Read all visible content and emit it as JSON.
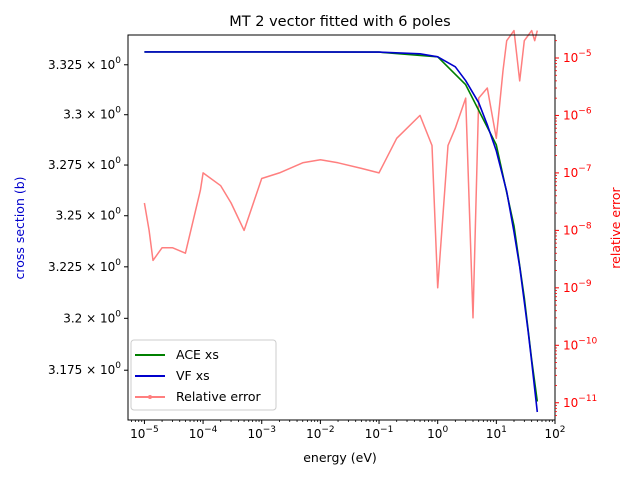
{
  "chart_data": {
    "type": "line",
    "title": "MT 2 vector fitted with 6 poles",
    "xlabel": "energy (eV)",
    "ylabel_left": "cross section (b)",
    "ylabel_right": "relative error",
    "x_scale": "log",
    "x_range_log10": [
      -5.28,
      2.0
    ],
    "x_ticks": [
      {
        "exp": -5,
        "label": "10",
        "sup": "−5"
      },
      {
        "exp": -4,
        "label": "10",
        "sup": "−4"
      },
      {
        "exp": -3,
        "label": "10",
        "sup": "−3"
      },
      {
        "exp": -2,
        "label": "10",
        "sup": "−2"
      },
      {
        "exp": -1,
        "label": "10",
        "sup": "−1"
      },
      {
        "exp": 0,
        "label": "10",
        "sup": "0"
      },
      {
        "exp": 1,
        "label": "10",
        "sup": "1"
      },
      {
        "exp": 2,
        "label": "10",
        "sup": "2"
      }
    ],
    "left_axis": {
      "scale": "log",
      "range": [
        3.1512,
        3.34
      ],
      "ticks": [
        {
          "value": 3.175,
          "label": "3.175 × 10",
          "sup": "0"
        },
        {
          "value": 3.2,
          "label": "3.2 × 10",
          "sup": "0"
        },
        {
          "value": 3.225,
          "label": "3.225 × 10",
          "sup": "0"
        },
        {
          "value": 3.25,
          "label": "3.25 × 10",
          "sup": "0"
        },
        {
          "value": 3.275,
          "label": "3.275 × 10",
          "sup": "0"
        },
        {
          "value": 3.3,
          "label": "3.3 × 10",
          "sup": "0"
        },
        {
          "value": 3.325,
          "label": "3.325 × 10",
          "sup": "0"
        }
      ]
    },
    "right_axis": {
      "scale": "log",
      "range_log10": [
        -11.3,
        -4.6
      ],
      "color": "#ff0000",
      "ticks": [
        {
          "exp": -11,
          "label": "10",
          "sup": "−11"
        },
        {
          "exp": -10,
          "label": "10",
          "sup": "−10"
        },
        {
          "exp": -9,
          "label": "10",
          "sup": "−9"
        },
        {
          "exp": -8,
          "label": "10",
          "sup": "−8"
        },
        {
          "exp": -7,
          "label": "10",
          "sup": "−7"
        },
        {
          "exp": -6,
          "label": "10",
          "sup": "−6"
        },
        {
          "exp": -5,
          "label": "10",
          "sup": "−5"
        }
      ]
    },
    "series": [
      {
        "name": "ACE xs",
        "color": "#008000",
        "axis": "left",
        "x": [
          1e-05,
          0.001,
          0.1,
          1.0,
          3.0,
          10.0,
          20.0,
          30.0,
          40.0,
          50.0
        ],
        "y": [
          3.3315,
          3.3315,
          3.3314,
          3.329,
          3.315,
          3.285,
          3.245,
          3.21,
          3.18,
          3.16
        ]
      },
      {
        "name": "VF xs",
        "color": "#0000cc",
        "axis": "left",
        "x": [
          1e-05,
          0.001,
          0.1,
          0.5,
          1.0,
          2.0,
          3.0,
          5.0,
          7.0,
          10.0,
          15.0,
          20.0,
          25.0,
          30.0,
          35.0,
          40.0,
          45.0,
          50.0
        ],
        "y": [
          3.3315,
          3.3315,
          3.3314,
          3.3305,
          3.329,
          3.324,
          3.317,
          3.306,
          3.295,
          3.282,
          3.262,
          3.242,
          3.225,
          3.208,
          3.193,
          3.179,
          3.166,
          3.155
        ]
      },
      {
        "name": "Relative error",
        "color": "#ff7f7f",
        "axis": "right",
        "x": [
          1e-05,
          1.2e-05,
          1.4e-05,
          2e-05,
          3e-05,
          5e-05,
          9e-05,
          0.0001,
          0.0002,
          0.0003,
          0.0005,
          0.001,
          0.002,
          0.005,
          0.01,
          0.02,
          0.05,
          0.1,
          0.2,
          0.5,
          0.8,
          1.0,
          1.5,
          2.0,
          3.0,
          4.0,
          5.0,
          7.0,
          10.0,
          13.0,
          15.0,
          20.0,
          25.0,
          30.0,
          40.0,
          45.0,
          50.0
        ],
        "y": [
          3e-08,
          1e-08,
          3e-09,
          5e-09,
          5e-09,
          4e-09,
          5e-08,
          1e-07,
          6e-08,
          3e-08,
          1e-08,
          8e-08,
          1e-07,
          1.5e-07,
          1.7e-07,
          1.5e-07,
          1.2e-07,
          1e-07,
          4e-07,
          1e-06,
          3e-07,
          1e-09,
          3e-07,
          6e-07,
          2e-06,
          3e-10,
          2e-06,
          3e-06,
          4e-07,
          6e-06,
          2e-05,
          3e-05,
          4e-06,
          2e-05,
          3e-05,
          2e-05,
          3e-05
        ]
      }
    ],
    "legend": {
      "placement": "lower-left",
      "entries": [
        "ACE xs",
        "VF xs",
        "Relative error"
      ]
    },
    "grid": false
  }
}
